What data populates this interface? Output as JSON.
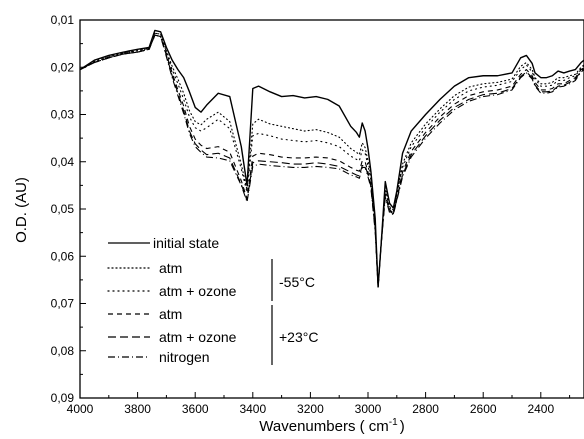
{
  "chart_data": {
    "type": "line",
    "xlabel": "Wavenumbers ( cm",
    "xlabel_sup": "-1",
    "xlabel_suffix": ")",
    "ylabel": "O.D. (AU)",
    "xlim": [
      4000,
      2250
    ],
    "ylim": [
      0.01,
      0.09
    ],
    "y_inverted": true,
    "x_ticks": [
      4000,
      3800,
      3600,
      3400,
      3200,
      3000,
      2800,
      2600,
      2400
    ],
    "x_tick_labels": [
      "4000",
      "3800",
      "3600",
      "3400",
      "3200",
      "3000",
      "2800",
      "2600",
      "2400"
    ],
    "y_ticks": [
      0.01,
      0.02,
      0.03,
      0.04,
      0.05,
      0.06,
      0.07,
      0.08,
      0.09
    ],
    "y_tick_labels": [
      "0,01",
      "0,02",
      "0,03",
      "0,04",
      "0,05",
      "0,06",
      "0,07",
      "0,08",
      "0,09"
    ],
    "grid": false,
    "legend_position": "bottom-left",
    "legend": {
      "groups": [
        {
          "label": "-55°C",
          "members": [
            1,
            2
          ]
        },
        {
          "label": "+23°C",
          "members": [
            3,
            4,
            5
          ]
        }
      ]
    },
    "series": [
      {
        "name": "initial state",
        "dash": "solid",
        "x": [
          4000,
          3950,
          3900,
          3850,
          3800,
          3760,
          3740,
          3720,
          3700,
          3680,
          3660,
          3640,
          3620,
          3600,
          3580,
          3560,
          3520,
          3480,
          3440,
          3420,
          3400,
          3380,
          3340,
          3300,
          3260,
          3220,
          3180,
          3140,
          3100,
          3060,
          3040,
          3030,
          3020,
          3010,
          3000,
          2990,
          2975,
          2965,
          2955,
          2940,
          2925,
          2912,
          2900,
          2880,
          2850,
          2800,
          2750,
          2700,
          2650,
          2600,
          2550,
          2500,
          2470,
          2450,
          2430,
          2420,
          2400,
          2380,
          2360,
          2340,
          2320,
          2300,
          2280,
          2260,
          2250
        ],
        "y": [
          0.0205,
          0.0185,
          0.0175,
          0.0168,
          0.0162,
          0.0158,
          0.0122,
          0.0125,
          0.0158,
          0.0185,
          0.0205,
          0.0222,
          0.0252,
          0.0285,
          0.0295,
          0.028,
          0.0255,
          0.0262,
          0.0368,
          0.045,
          0.0245,
          0.024,
          0.0252,
          0.0262,
          0.026,
          0.0265,
          0.0262,
          0.0268,
          0.0282,
          0.0325,
          0.0338,
          0.0348,
          0.0318,
          0.0335,
          0.0372,
          0.042,
          0.052,
          0.0665,
          0.058,
          0.0442,
          0.0488,
          0.0498,
          0.0462,
          0.0382,
          0.0335,
          0.03,
          0.0268,
          0.024,
          0.0222,
          0.0218,
          0.0218,
          0.0212,
          0.018,
          0.0175,
          0.0192,
          0.0212,
          0.0222,
          0.0222,
          0.0218,
          0.0208,
          0.0212,
          0.0208,
          0.0205,
          0.019,
          0.0185
        ]
      },
      {
        "name": "atm",
        "dash": "dot",
        "x": [
          4000,
          3950,
          3900,
          3850,
          3800,
          3760,
          3740,
          3720,
          3700,
          3680,
          3660,
          3640,
          3620,
          3600,
          3580,
          3560,
          3520,
          3480,
          3440,
          3420,
          3400,
          3380,
          3340,
          3300,
          3260,
          3220,
          3180,
          3140,
          3100,
          3060,
          3040,
          3030,
          3020,
          3010,
          3000,
          2990,
          2975,
          2965,
          2955,
          2940,
          2925,
          2912,
          2900,
          2880,
          2850,
          2800,
          2750,
          2700,
          2650,
          2600,
          2550,
          2500,
          2470,
          2450,
          2430,
          2420,
          2400,
          2380,
          2360,
          2340,
          2320,
          2300,
          2280,
          2260,
          2250
        ],
        "y": [
          0.0205,
          0.0188,
          0.0178,
          0.017,
          0.0165,
          0.016,
          0.0128,
          0.013,
          0.0165,
          0.0198,
          0.0225,
          0.0255,
          0.0292,
          0.0315,
          0.0322,
          0.031,
          0.0295,
          0.0315,
          0.0405,
          0.046,
          0.032,
          0.031,
          0.032,
          0.0325,
          0.033,
          0.0335,
          0.0332,
          0.0338,
          0.0348,
          0.0372,
          0.038,
          0.0385,
          0.036,
          0.037,
          0.0398,
          0.043,
          0.053,
          0.0665,
          0.058,
          0.0455,
          0.0495,
          0.0502,
          0.0468,
          0.0405,
          0.036,
          0.032,
          0.0288,
          0.026,
          0.0242,
          0.0235,
          0.0232,
          0.0225,
          0.0198,
          0.019,
          0.0205,
          0.0222,
          0.0235,
          0.0235,
          0.0232,
          0.0222,
          0.0222,
          0.0218,
          0.0215,
          0.02,
          0.0195
        ]
      },
      {
        "name": "atm + ozone",
        "dash": "dot2",
        "x": [
          4000,
          3950,
          3900,
          3850,
          3800,
          3760,
          3740,
          3720,
          3700,
          3680,
          3660,
          3640,
          3620,
          3600,
          3580,
          3560,
          3520,
          3480,
          3440,
          3420,
          3400,
          3380,
          3340,
          3300,
          3260,
          3220,
          3180,
          3140,
          3100,
          3060,
          3040,
          3030,
          3020,
          3010,
          3000,
          2990,
          2975,
          2965,
          2955,
          2940,
          2925,
          2912,
          2900,
          2880,
          2850,
          2800,
          2750,
          2700,
          2650,
          2600,
          2550,
          2500,
          2470,
          2450,
          2430,
          2420,
          2400,
          2380,
          2360,
          2340,
          2320,
          2300,
          2280,
          2260,
          2250
        ],
        "y": [
          0.0205,
          0.0188,
          0.0178,
          0.017,
          0.0165,
          0.016,
          0.0128,
          0.013,
          0.0168,
          0.0205,
          0.0235,
          0.0268,
          0.0305,
          0.0328,
          0.0335,
          0.0328,
          0.031,
          0.033,
          0.0415,
          0.0465,
          0.0345,
          0.034,
          0.0345,
          0.0352,
          0.0355,
          0.0358,
          0.0355,
          0.036,
          0.0368,
          0.0388,
          0.0395,
          0.0398,
          0.0375,
          0.0382,
          0.0408,
          0.0438,
          0.0535,
          0.0665,
          0.058,
          0.046,
          0.0498,
          0.0505,
          0.0472,
          0.0412,
          0.0368,
          0.0328,
          0.0295,
          0.0268,
          0.025,
          0.0242,
          0.0238,
          0.023,
          0.0205,
          0.0195,
          0.021,
          0.0225,
          0.024,
          0.024,
          0.0238,
          0.0228,
          0.0228,
          0.0222,
          0.0218,
          0.0202,
          0.0198
        ]
      },
      {
        "name": "atm",
        "dash": "dash",
        "x": [
          4000,
          3950,
          3900,
          3850,
          3800,
          3760,
          3740,
          3720,
          3700,
          3680,
          3660,
          3640,
          3620,
          3600,
          3580,
          3560,
          3520,
          3480,
          3440,
          3420,
          3400,
          3380,
          3340,
          3300,
          3260,
          3220,
          3180,
          3140,
          3100,
          3060,
          3040,
          3030,
          3020,
          3010,
          3000,
          2990,
          2975,
          2965,
          2955,
          2940,
          2925,
          2912,
          2900,
          2880,
          2850,
          2800,
          2750,
          2700,
          2650,
          2600,
          2550,
          2500,
          2470,
          2450,
          2430,
          2420,
          2400,
          2380,
          2360,
          2340,
          2320,
          2300,
          2280,
          2260,
          2250
        ],
        "y": [
          0.0205,
          0.019,
          0.018,
          0.0172,
          0.0168,
          0.0162,
          0.0132,
          0.0135,
          0.0172,
          0.0212,
          0.0248,
          0.0282,
          0.0325,
          0.0352,
          0.0365,
          0.0372,
          0.0368,
          0.038,
          0.044,
          0.0478,
          0.0388,
          0.0382,
          0.0385,
          0.039,
          0.0392,
          0.0392,
          0.039,
          0.0392,
          0.0398,
          0.0412,
          0.0418,
          0.042,
          0.0398,
          0.04,
          0.0422,
          0.0448,
          0.054,
          0.0665,
          0.058,
          0.0468,
          0.0502,
          0.0508,
          0.0478,
          0.0422,
          0.0378,
          0.0338,
          0.0305,
          0.0278,
          0.026,
          0.0252,
          0.0248,
          0.024,
          0.0215,
          0.0205,
          0.0218,
          0.0232,
          0.0248,
          0.0248,
          0.0245,
          0.0235,
          0.0235,
          0.0228,
          0.0222,
          0.0205,
          0.02
        ]
      },
      {
        "name": "atm + ozone",
        "dash": "longdash",
        "x": [
          4000,
          3950,
          3900,
          3850,
          3800,
          3760,
          3740,
          3720,
          3700,
          3680,
          3660,
          3640,
          3620,
          3600,
          3580,
          3560,
          3520,
          3480,
          3440,
          3420,
          3400,
          3380,
          3340,
          3300,
          3260,
          3220,
          3180,
          3140,
          3100,
          3060,
          3040,
          3030,
          3020,
          3010,
          3000,
          2990,
          2975,
          2965,
          2955,
          2940,
          2925,
          2912,
          2900,
          2880,
          2850,
          2800,
          2750,
          2700,
          2650,
          2600,
          2550,
          2500,
          2470,
          2450,
          2430,
          2420,
          2400,
          2380,
          2360,
          2340,
          2320,
          2300,
          2280,
          2260,
          2250
        ],
        "y": [
          0.0205,
          0.019,
          0.018,
          0.0172,
          0.0168,
          0.0162,
          0.0132,
          0.0135,
          0.0175,
          0.0218,
          0.0255,
          0.0292,
          0.0335,
          0.0362,
          0.0375,
          0.0385,
          0.0382,
          0.0392,
          0.0448,
          0.0482,
          0.0402,
          0.0398,
          0.04,
          0.0402,
          0.0405,
          0.0405,
          0.0402,
          0.0405,
          0.041,
          0.0422,
          0.0428,
          0.043,
          0.0408,
          0.0408,
          0.0428,
          0.0452,
          0.0545,
          0.0665,
          0.058,
          0.0472,
          0.0505,
          0.051,
          0.048,
          0.0428,
          0.0385,
          0.0345,
          0.0312,
          0.0285,
          0.0268,
          0.0258,
          0.0255,
          0.0245,
          0.022,
          0.021,
          0.0222,
          0.0238,
          0.0252,
          0.0252,
          0.025,
          0.024,
          0.0238,
          0.0232,
          0.0225,
          0.0208,
          0.0202
        ]
      },
      {
        "name": "nitrogen",
        "dash": "dashdot",
        "x": [
          4000,
          3950,
          3900,
          3850,
          3800,
          3760,
          3740,
          3720,
          3700,
          3680,
          3660,
          3640,
          3620,
          3600,
          3580,
          3560,
          3520,
          3480,
          3440,
          3420,
          3400,
          3380,
          3340,
          3300,
          3260,
          3220,
          3180,
          3140,
          3100,
          3060,
          3040,
          3030,
          3020,
          3010,
          3000,
          2990,
          2975,
          2965,
          2955,
          2940,
          2925,
          2912,
          2900,
          2880,
          2850,
          2800,
          2750,
          2700,
          2650,
          2600,
          2550,
          2500,
          2470,
          2450,
          2430,
          2420,
          2400,
          2380,
          2360,
          2340,
          2320,
          2300,
          2280,
          2260,
          2250
        ],
        "y": [
          0.0205,
          0.019,
          0.018,
          0.0172,
          0.0168,
          0.0162,
          0.0132,
          0.0135,
          0.0178,
          0.0222,
          0.026,
          0.0298,
          0.034,
          0.0368,
          0.038,
          0.039,
          0.0392,
          0.0398,
          0.045,
          0.0485,
          0.041,
          0.0405,
          0.0408,
          0.041,
          0.0412,
          0.0412,
          0.041,
          0.0412,
          0.0415,
          0.0428,
          0.0432,
          0.0435,
          0.0412,
          0.0412,
          0.0432,
          0.0455,
          0.0548,
          0.0665,
          0.058,
          0.0475,
          0.0508,
          0.0512,
          0.0482,
          0.0432,
          0.039,
          0.035,
          0.0318,
          0.029,
          0.0272,
          0.0262,
          0.0258,
          0.0248,
          0.0222,
          0.0212,
          0.0225,
          0.024,
          0.0255,
          0.0255,
          0.0252,
          0.0242,
          0.024,
          0.0235,
          0.0228,
          0.021,
          0.0205
        ]
      }
    ]
  }
}
